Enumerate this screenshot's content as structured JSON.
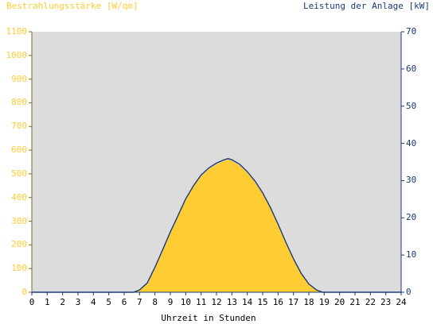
{
  "chart_data": {
    "type": "area",
    "title": "",
    "ylabel_left": "Bestrahlungsstärke [W/qm]",
    "ylabel_right": "Leistung der Anlage [kW]",
    "xlabel": "Uhrzeit in Stunden",
    "xlim": [
      0,
      24
    ],
    "ylim_left": [
      0,
      1100
    ],
    "ylim_right": [
      0,
      70
    ],
    "x_ticks": [
      0,
      1,
      2,
      3,
      4,
      5,
      6,
      7,
      8,
      9,
      10,
      11,
      12,
      13,
      14,
      15,
      16,
      17,
      18,
      19,
      20,
      21,
      22,
      23,
      24
    ],
    "y_ticks_left": [
      0,
      100,
      200,
      300,
      400,
      500,
      600,
      700,
      800,
      900,
      1000,
      1100
    ],
    "y_ticks_right": [
      0,
      10,
      20,
      30,
      40,
      50,
      60,
      70
    ],
    "grid": false,
    "plot_background": "#dcdcdc",
    "series": [
      {
        "name": "",
        "axis": "left",
        "style": "area",
        "color": "#ffcc33",
        "x": [
          0,
          6.6,
          7.0,
          7.5,
          8.0,
          8.5,
          9.0,
          9.5,
          10.0,
          10.5,
          11.0,
          11.5,
          12.0,
          12.5,
          12.75,
          13.0,
          13.5,
          14.0,
          14.5,
          15.0,
          15.5,
          16.0,
          16.5,
          17.0,
          17.5,
          18.0,
          18.5,
          18.9,
          24
        ],
        "y": [
          0,
          0,
          8,
          35,
          100,
          175,
          250,
          320,
          390,
          445,
          490,
          520,
          540,
          555,
          560,
          555,
          535,
          505,
          465,
          415,
          355,
          285,
          210,
          140,
          80,
          35,
          10,
          0,
          0
        ]
      },
      {
        "name": "",
        "axis": "right",
        "style": "line",
        "color": "#1a3a7a",
        "x": [
          0,
          6.6,
          7.0,
          7.5,
          8.0,
          8.5,
          9.0,
          9.5,
          10.0,
          10.5,
          11.0,
          11.5,
          12.0,
          12.5,
          12.75,
          13.0,
          13.5,
          14.0,
          14.5,
          15.0,
          15.5,
          16.0,
          16.5,
          17.0,
          17.5,
          18.0,
          18.5,
          18.9,
          24
        ],
        "y": [
          0,
          0,
          0.6,
          2.5,
          6.7,
          11.4,
          16.2,
          20.6,
          25.1,
          28.6,
          31.5,
          33.4,
          34.7,
          35.6,
          35.9,
          35.6,
          34.4,
          32.4,
          29.9,
          26.7,
          22.8,
          18.3,
          13.5,
          9.0,
          5.1,
          2.2,
          0.6,
          0,
          0
        ]
      }
    ]
  }
}
